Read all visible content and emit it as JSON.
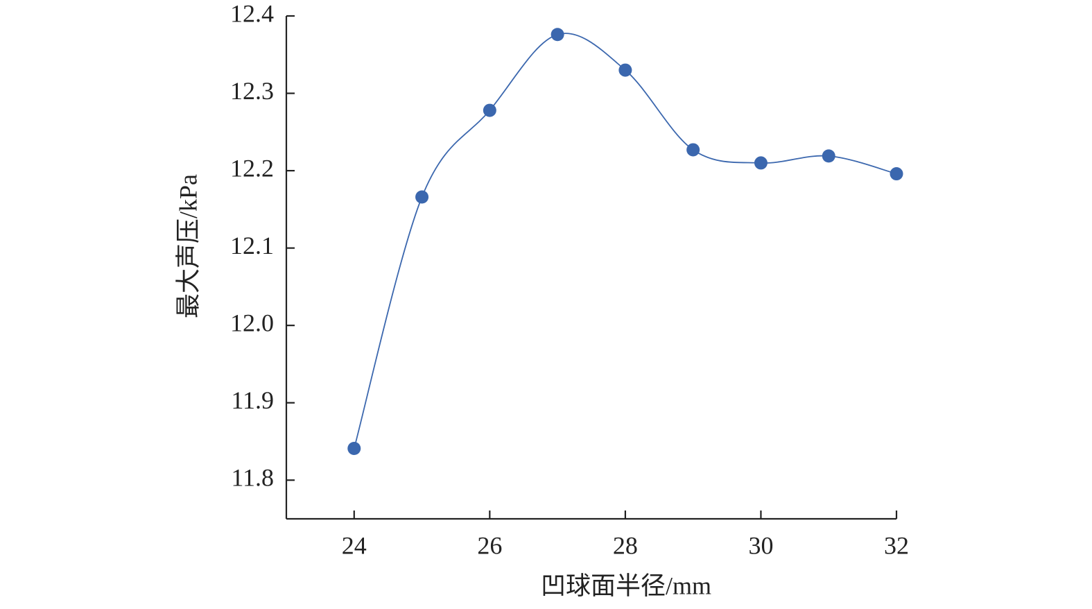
{
  "chart_data": {
    "type": "line",
    "x_label": "凹球面半径/mm",
    "y_label": "最大声压/kPa",
    "x": [
      24,
      25,
      26,
      27,
      28,
      29,
      30,
      31,
      32
    ],
    "series": [
      {
        "color": "#3b67ae",
        "values": [
          11.841,
          12.166,
          12.278,
          12.376,
          12.33,
          12.227,
          12.21,
          12.219,
          12.196
        ]
      }
    ],
    "xlim": [
      23,
      32
    ],
    "xticks": [
      24,
      26,
      28,
      30,
      32
    ],
    "ylim": [
      11.75,
      12.4
    ],
    "yticks": [
      11.8,
      11.9,
      {
        "value": 12,
        "label": "12.0"
      },
      12.1,
      12.2,
      12.3,
      12.4
    ],
    "smooth": true,
    "grid": false
  }
}
